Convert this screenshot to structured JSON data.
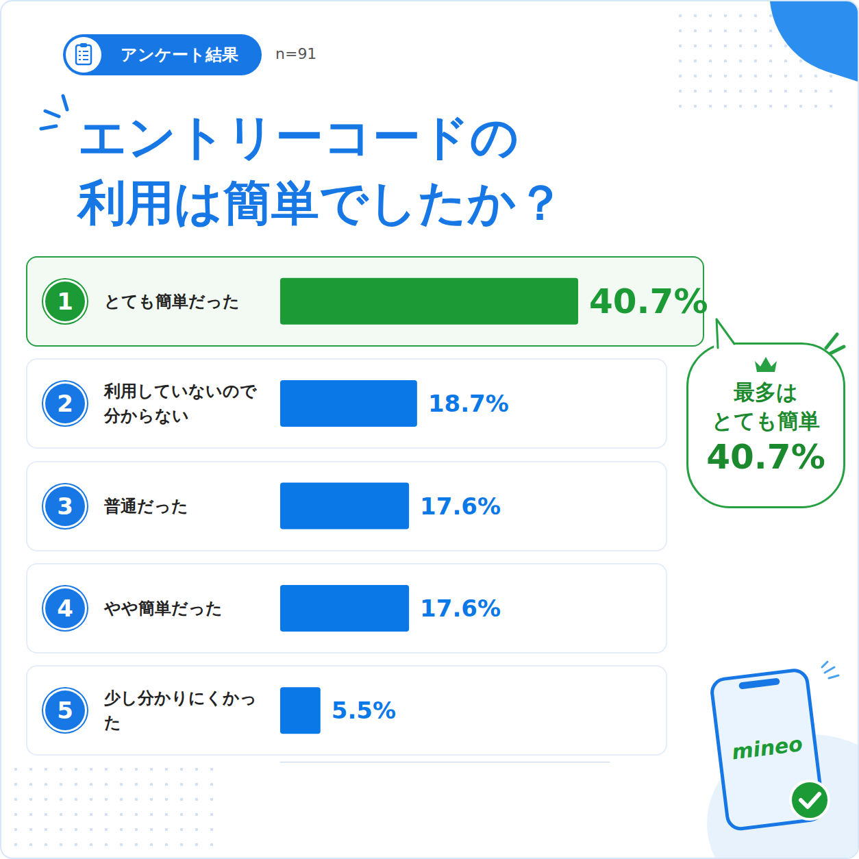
{
  "header": {
    "badge": "アンケート結果",
    "sample": "n=91"
  },
  "chart_data": {
    "type": "bar",
    "orientation": "horizontal",
    "title": "エントリーコードの\n利用は簡単でしたか？",
    "categories": [
      "とても簡単だった",
      "利用していないので分からない",
      "普通だった",
      "やや簡単だった",
      "少し分かりにくかった"
    ],
    "rank_labels": [
      "1",
      "2",
      "3",
      "4",
      "5"
    ],
    "values": [
      40.7,
      18.7,
      17.6,
      17.6,
      5.5
    ],
    "value_labels": [
      "40.7%",
      "18.7%",
      "17.6%",
      "17.6%",
      "5.5%"
    ],
    "colors": [
      "#1b9a35",
      "#0b78e8",
      "#0b78e8",
      "#0b78e8",
      "#0b78e8"
    ],
    "xlim": [
      0,
      45
    ],
    "tick_labels": false,
    "grid": false,
    "data_labels": true
  },
  "callout": {
    "lines": [
      "最多は",
      "とても簡単",
      "40.7%"
    ]
  },
  "logo": "mineo"
}
